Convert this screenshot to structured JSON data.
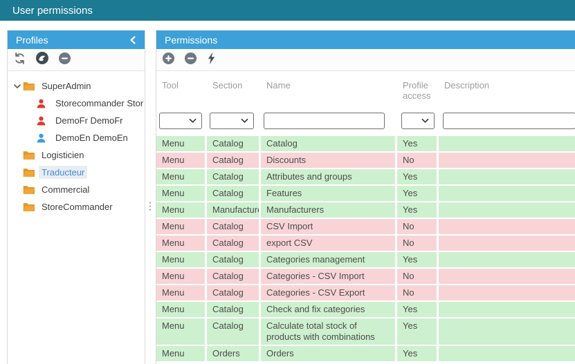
{
  "title_bar": {
    "title": "User permissions"
  },
  "colors": {
    "topbar_bg": "#1c7a93",
    "panel_header_bg": "#3da0d9",
    "access_yes_bg": "#cdf0ce",
    "access_no_bg": "#f8d4d6",
    "selected_item_text": "#3f8ed6",
    "selected_item_bg": "#e9edf3",
    "folder_icon": "#f0a63c",
    "user_icon_red": "#e2392e",
    "user_icon_blue": "#3f9cdb"
  },
  "profiles_panel": {
    "title": "Profiles",
    "toolbar": [
      {
        "name": "refresh-profiles-button",
        "icon": "refresh-icon"
      },
      {
        "name": "prestashop-button",
        "icon": "prestashop-icon"
      },
      {
        "name": "remove-profile-button",
        "icon": "remove-icon"
      }
    ],
    "tree": [
      {
        "label": "SuperAdmin",
        "icon": "folder",
        "level": 0,
        "expanded": true,
        "selected": false
      },
      {
        "label": "Storecommander Stor",
        "icon": "user-red",
        "level": 1,
        "selected": false
      },
      {
        "label": "DemoFr DemoFr",
        "icon": "user-red",
        "level": 1,
        "selected": false
      },
      {
        "label": "DemoEn DemoEn",
        "icon": "user-blue",
        "level": 1,
        "selected": false
      },
      {
        "label": "Logisticien",
        "icon": "folder",
        "level": 0,
        "selected": false
      },
      {
        "label": "Traducteur",
        "icon": "folder",
        "level": 0,
        "selected": true
      },
      {
        "label": "Commercial",
        "icon": "folder",
        "level": 0,
        "selected": false
      },
      {
        "label": "StoreCommander",
        "icon": "folder",
        "level": 0,
        "selected": false
      }
    ]
  },
  "permissions_panel": {
    "title": "Permissions",
    "toolbar": [
      {
        "name": "add-permission-button",
        "icon": "add-icon"
      },
      {
        "name": "remove-permission-button",
        "icon": "remove-icon"
      },
      {
        "name": "apply-permission-button",
        "icon": "lightning-icon"
      }
    ],
    "filters": {
      "tool": "",
      "section": "",
      "name": "",
      "profile_access": "",
      "description": ""
    },
    "table": {
      "columns": [
        {
          "key": "tool",
          "label": "Tool"
        },
        {
          "key": "section",
          "label": "Section"
        },
        {
          "key": "name",
          "label": "Name"
        },
        {
          "key": "profile_access",
          "label": "Profile access"
        },
        {
          "key": "description",
          "label": "Description"
        }
      ],
      "rows": [
        {
          "tool": "Menu",
          "section": "Catalog",
          "name": "Catalog",
          "profile_access": "Yes",
          "description": ""
        },
        {
          "tool": "Menu",
          "section": "Catalog",
          "name": "Discounts",
          "profile_access": "No",
          "description": ""
        },
        {
          "tool": "Menu",
          "section": "Catalog",
          "name": "Attributes and groups",
          "profile_access": "Yes",
          "description": ""
        },
        {
          "tool": "Menu",
          "section": "Catalog",
          "name": "Features",
          "profile_access": "Yes",
          "description": ""
        },
        {
          "tool": "Menu",
          "section": "Manufacturers",
          "name": "Manufacturers",
          "profile_access": "Yes",
          "description": ""
        },
        {
          "tool": "Menu",
          "section": "Catalog",
          "name": "CSV Import",
          "profile_access": "No",
          "description": ""
        },
        {
          "tool": "Menu",
          "section": "Catalog",
          "name": "export CSV",
          "profile_access": "No",
          "description": ""
        },
        {
          "tool": "Menu",
          "section": "Catalog",
          "name": "Categories management",
          "profile_access": "Yes",
          "description": ""
        },
        {
          "tool": "Menu",
          "section": "Catalog",
          "name": "Categories - CSV Import",
          "profile_access": "No",
          "description": ""
        },
        {
          "tool": "Menu",
          "section": "Catalog",
          "name": "Categories - CSV Export",
          "profile_access": "No",
          "description": ""
        },
        {
          "tool": "Menu",
          "section": "Catalog",
          "name": "Check and fix categories",
          "profile_access": "Yes",
          "description": ""
        },
        {
          "tool": "Menu",
          "section": "Catalog",
          "name": "Calculate total stock of products with combinations",
          "profile_access": "Yes",
          "description": ""
        },
        {
          "tool": "Menu",
          "section": "Orders",
          "name": "Orders",
          "profile_access": "Yes",
          "description": ""
        }
      ]
    }
  }
}
